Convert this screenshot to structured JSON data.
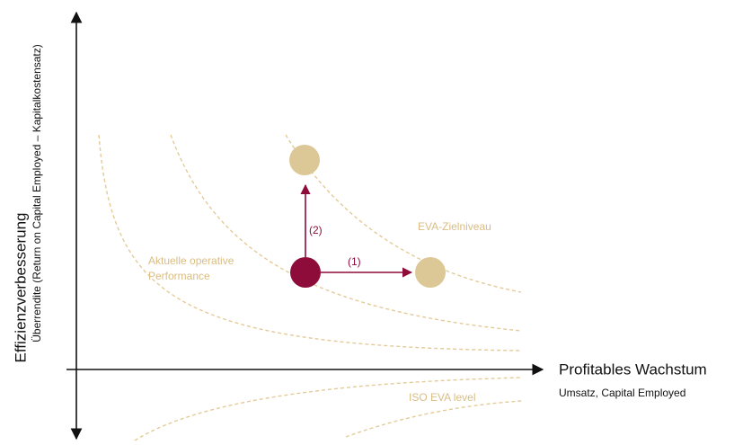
{
  "axes": {
    "y": {
      "label": "Effizienzverbesserung",
      "sublabel": "Überrendite (Return on Capital Employed – Kapitalkostensatz)"
    },
    "x": {
      "label": "Profitables Wachstum",
      "sublabel": "Umsatz, Capital Employed"
    }
  },
  "curve_labels": {
    "current": [
      "Aktuelle operative",
      "Performance"
    ],
    "target": "EVA-Zielniveau",
    "iso": "ISO EVA level"
  },
  "arrows": {
    "growth": "(1)",
    "efficiency": "(2)"
  }
}
